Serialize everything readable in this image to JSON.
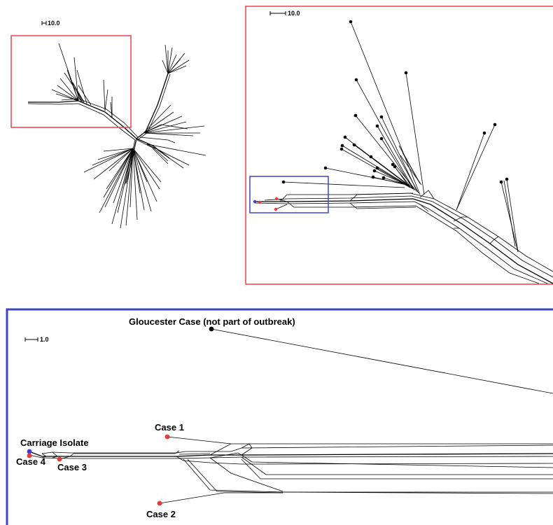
{
  "panels": {
    "overview": {
      "scale_label": "10.0"
    },
    "zoom": {
      "scale_label": "10.0"
    },
    "detail": {
      "scale_label": "1.0"
    }
  },
  "labels": {
    "gloucester": "Gloucester Case (not part of outbreak)",
    "case1": "Case 1",
    "carriage": "Carriage Isolate",
    "case4": "Case 4",
    "case3": "Case 3",
    "case2": "Case 2"
  },
  "colors": {
    "highlight_box_red": "#e8414d",
    "highlight_box_blue": "#3d45c6",
    "case_node": "#e83a3a",
    "carriage_node": "#3b3fd6",
    "other_node": "#000000"
  }
}
